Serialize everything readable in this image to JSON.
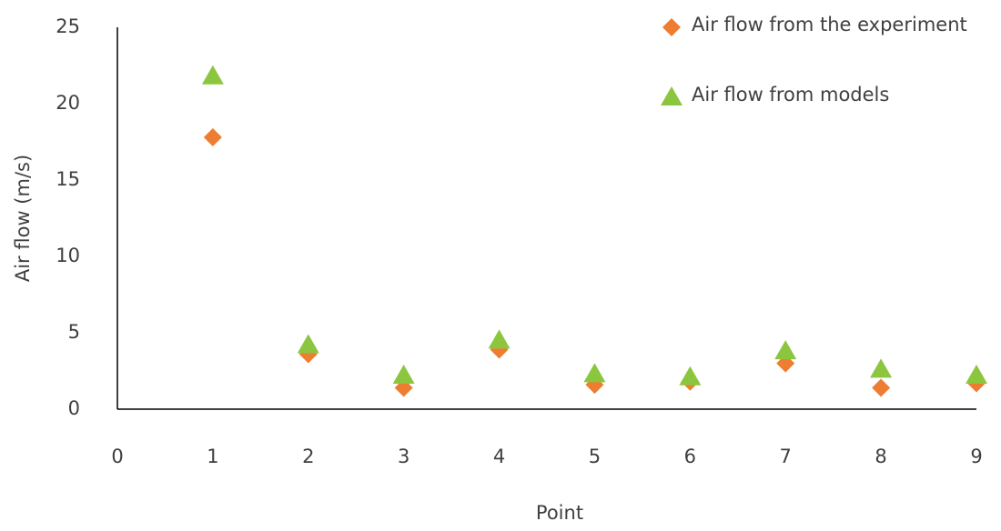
{
  "chart_data": {
    "type": "scatter",
    "x_label": "Point",
    "y_label": "Air flow (m/s)",
    "xlim": [
      0,
      9
    ],
    "xticks": [
      0,
      1,
      2,
      3,
      4,
      5,
      6,
      7,
      8,
      9
    ],
    "ylim": [
      0,
      25
    ],
    "yticks": [
      0,
      5,
      10,
      15,
      20,
      25
    ],
    "series": [
      {
        "name": "Air flow from the experiment",
        "color": "#ed7d31",
        "marker": "diamond",
        "x": [
          1,
          2,
          3,
          4,
          5,
          6,
          7,
          8,
          9
        ],
        "values": [
          17.8,
          3.6,
          1.4,
          3.9,
          1.6,
          1.8,
          3.0,
          1.4,
          1.7
        ]
      },
      {
        "name": "Air flow from models",
        "color": "#8cc63f",
        "marker": "triangle",
        "x": [
          1,
          2,
          3,
          4,
          5,
          6,
          7,
          8,
          9
        ],
        "values": [
          21.8,
          4.2,
          2.2,
          4.5,
          2.3,
          2.1,
          3.8,
          2.6,
          2.2
        ]
      }
    ],
    "legend": "upper right"
  }
}
